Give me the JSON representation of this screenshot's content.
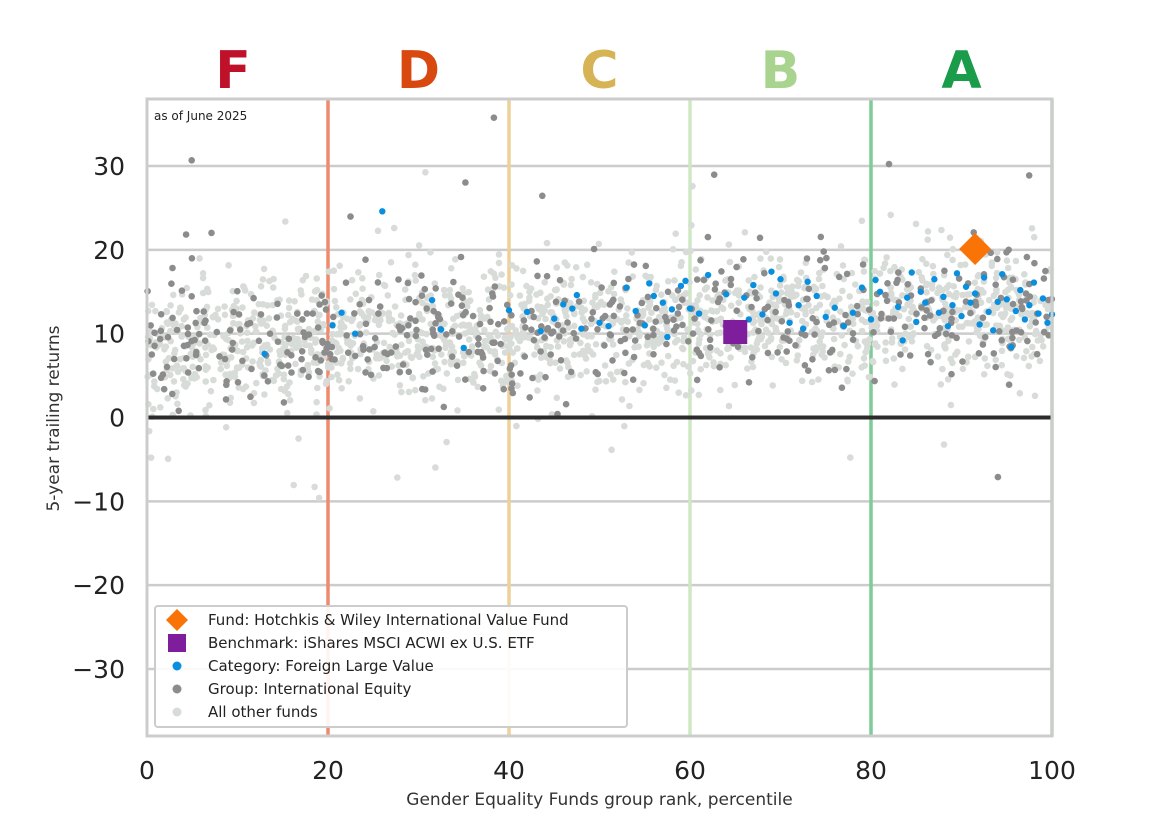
{
  "chart_data": {
    "type": "scatter",
    "title": "",
    "annotation": "as of June 2025",
    "xlabel": "Gender Equality Funds group rank, percentile",
    "ylabel": "5-year trailing returns",
    "xlim": [
      0,
      100
    ],
    "ylim": [
      -38,
      38
    ],
    "x_ticks": [
      0,
      20,
      40,
      60,
      80,
      100
    ],
    "y_ticks": [
      -30,
      -20,
      -10,
      0,
      10,
      20,
      30
    ],
    "grid": "horizontal",
    "zero_line": 0,
    "grade_bands": [
      {
        "label": "F",
        "center": 9.5,
        "color": "#c0112b",
        "boundary": 20,
        "line_color": "#ee8a6e"
      },
      {
        "label": "D",
        "center": 30,
        "color": "#d9480f",
        "boundary": 40,
        "line_color": "#edd09a"
      },
      {
        "label": "C",
        "center": 50,
        "color": "#d6b355",
        "boundary": 60,
        "line_color": "#cfe8c4"
      },
      {
        "label": "B",
        "center": 70,
        "color": "#a8d48f",
        "boundary": 80,
        "line_color": "#7fcc98"
      },
      {
        "label": "A",
        "center": 90,
        "color": "#1a9c4a",
        "boundary": 100,
        "line_color": "#9fdcb3"
      }
    ],
    "legend_position": "lower-left",
    "series": [
      {
        "name": "Fund: Hotchkis & Wiley International Value Fund",
        "marker": "diamond",
        "color": "#f97306",
        "points": [
          [
            91.5,
            20.1
          ]
        ]
      },
      {
        "name": "Benchmark: iShares MSCI ACWI ex U.S. ETF",
        "marker": "square",
        "color": "#7e1e9c",
        "points": [
          [
            65,
            10.2
          ]
        ]
      },
      {
        "name": "Category: Foreign Large Value",
        "marker": "dot",
        "color": "#0a8fdf",
        "points": [
          [
            13,
            7.6
          ],
          [
            20.5,
            11
          ],
          [
            21.5,
            12.5
          ],
          [
            23,
            10
          ],
          [
            26,
            24.6
          ],
          [
            31.5,
            14
          ],
          [
            32.5,
            10.5
          ],
          [
            35,
            8.3
          ],
          [
            40,
            12.8
          ],
          [
            42,
            12.6
          ],
          [
            43.5,
            10.3
          ],
          [
            45,
            11.8
          ],
          [
            46,
            13.5
          ],
          [
            47,
            13
          ],
          [
            47.5,
            14.6
          ],
          [
            48,
            10.6
          ],
          [
            50,
            11.3
          ],
          [
            51,
            10.9
          ],
          [
            53,
            15.5
          ],
          [
            54,
            12.7
          ],
          [
            55,
            11
          ],
          [
            55.5,
            16
          ],
          [
            56,
            14.5
          ],
          [
            57,
            13.7
          ],
          [
            57.5,
            9.6
          ],
          [
            58,
            12.9
          ],
          [
            59,
            15.7
          ],
          [
            59.5,
            16.3
          ],
          [
            60,
            13
          ],
          [
            61,
            12.4
          ],
          [
            62,
            17
          ],
          [
            64,
            14.7
          ],
          [
            66,
            14.3
          ],
          [
            66.5,
            11.7
          ],
          [
            67,
            15.8
          ],
          [
            68,
            12.3
          ],
          [
            69,
            17.4
          ],
          [
            69.5,
            14.8
          ],
          [
            70,
            16.5
          ],
          [
            71,
            11.3
          ],
          [
            72,
            13.4
          ],
          [
            72.5,
            10.6
          ],
          [
            73,
            16.2
          ],
          [
            74,
            14.5
          ],
          [
            75,
            12
          ],
          [
            76,
            13.1
          ],
          [
            77,
            10.9
          ],
          [
            78,
            12.5
          ],
          [
            79,
            15.5
          ],
          [
            80,
            11.7
          ],
          [
            80.5,
            16.4
          ],
          [
            81,
            15
          ],
          [
            83,
            13.2
          ],
          [
            83.5,
            9.2
          ],
          [
            84,
            14.3
          ],
          [
            84.5,
            17.3
          ],
          [
            85,
            11.4
          ],
          [
            85.5,
            15
          ],
          [
            86,
            13.7
          ],
          [
            87,
            16.5
          ],
          [
            87.5,
            12.5
          ],
          [
            88,
            14.4
          ],
          [
            88.5,
            10.9
          ],
          [
            89,
            13.4
          ],
          [
            89.5,
            17.2
          ],
          [
            90,
            12.1
          ],
          [
            90.5,
            15.6
          ],
          [
            91,
            13.7
          ],
          [
            91.5,
            14.8
          ],
          [
            92,
            11.1
          ],
          [
            92.5,
            16.7
          ],
          [
            93,
            12.6
          ],
          [
            93.5,
            10.4
          ],
          [
            94,
            13.8
          ],
          [
            94.5,
            17.1
          ],
          [
            95,
            14.1
          ],
          [
            95.5,
            8.4
          ],
          [
            96,
            12.7
          ],
          [
            96.5,
            15.2
          ],
          [
            97,
            11.7
          ],
          [
            97.5,
            13.4
          ],
          [
            98,
            16.1
          ],
          [
            98.5,
            12.4
          ],
          [
            99,
            14.2
          ],
          [
            99.5,
            11.3
          ],
          [
            100,
            12.3
          ]
        ]
      },
      {
        "name": "Group: International Equity",
        "marker": "dot",
        "color": "#8c8c8c",
        "count": 520,
        "seed": 7
      },
      {
        "name": "All other funds",
        "marker": "dot",
        "color": "#d8dcd8",
        "count": 1700,
        "seed": 3
      }
    ]
  }
}
